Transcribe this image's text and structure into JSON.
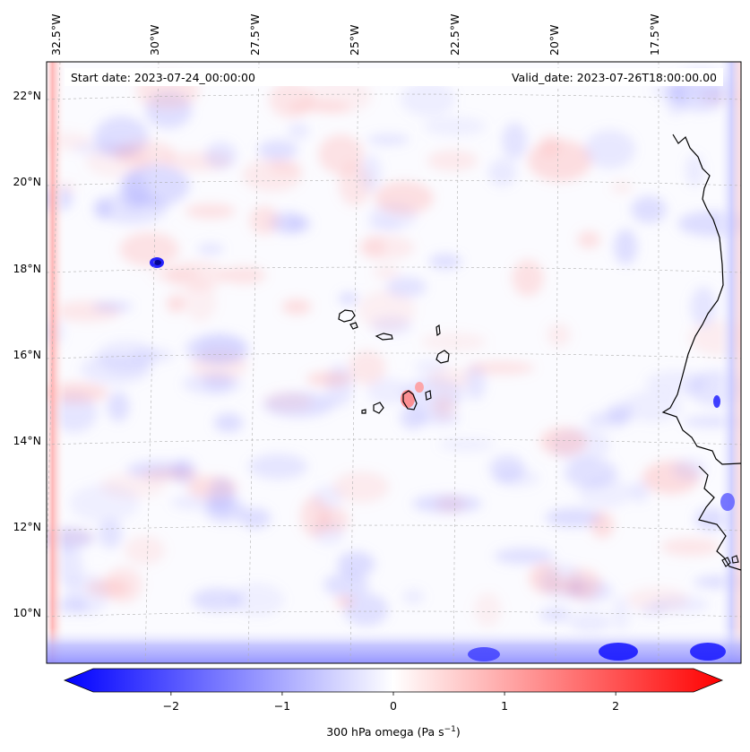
{
  "header": {
    "start_date": "Start date: 2023-07-24_00:00:00",
    "valid_date": "Valid_date: 2023-07-26T18:00:00.00"
  },
  "map": {
    "variable": "300 hPa omega",
    "lon_labels": [
      "32.5°W",
      "30°W",
      "27.5°W",
      "25°W",
      "22.5°W",
      "20°W",
      "17.5°W"
    ],
    "lat_labels": [
      "22°N",
      "20°N",
      "18°N",
      "16°N",
      "14°N",
      "12°N",
      "10°N"
    ],
    "lon_range": [
      -33.0,
      -15.5
    ],
    "lat_range": [
      8.9,
      22.8
    ],
    "gridlines": true,
    "colormap": "bwr"
  },
  "colorbar": {
    "label_main": "300 hPa omega (Pa s",
    "label_exp": "−1",
    "label_close": ")",
    "tick_labels": [
      "−2",
      "−1",
      "0",
      "1",
      "2"
    ],
    "vmin": -2.7,
    "vmax": 2.7,
    "extend": "both",
    "colors": {
      "negative": "#0000ff",
      "zero": "#ffffff",
      "positive": "#ff0000"
    }
  }
}
